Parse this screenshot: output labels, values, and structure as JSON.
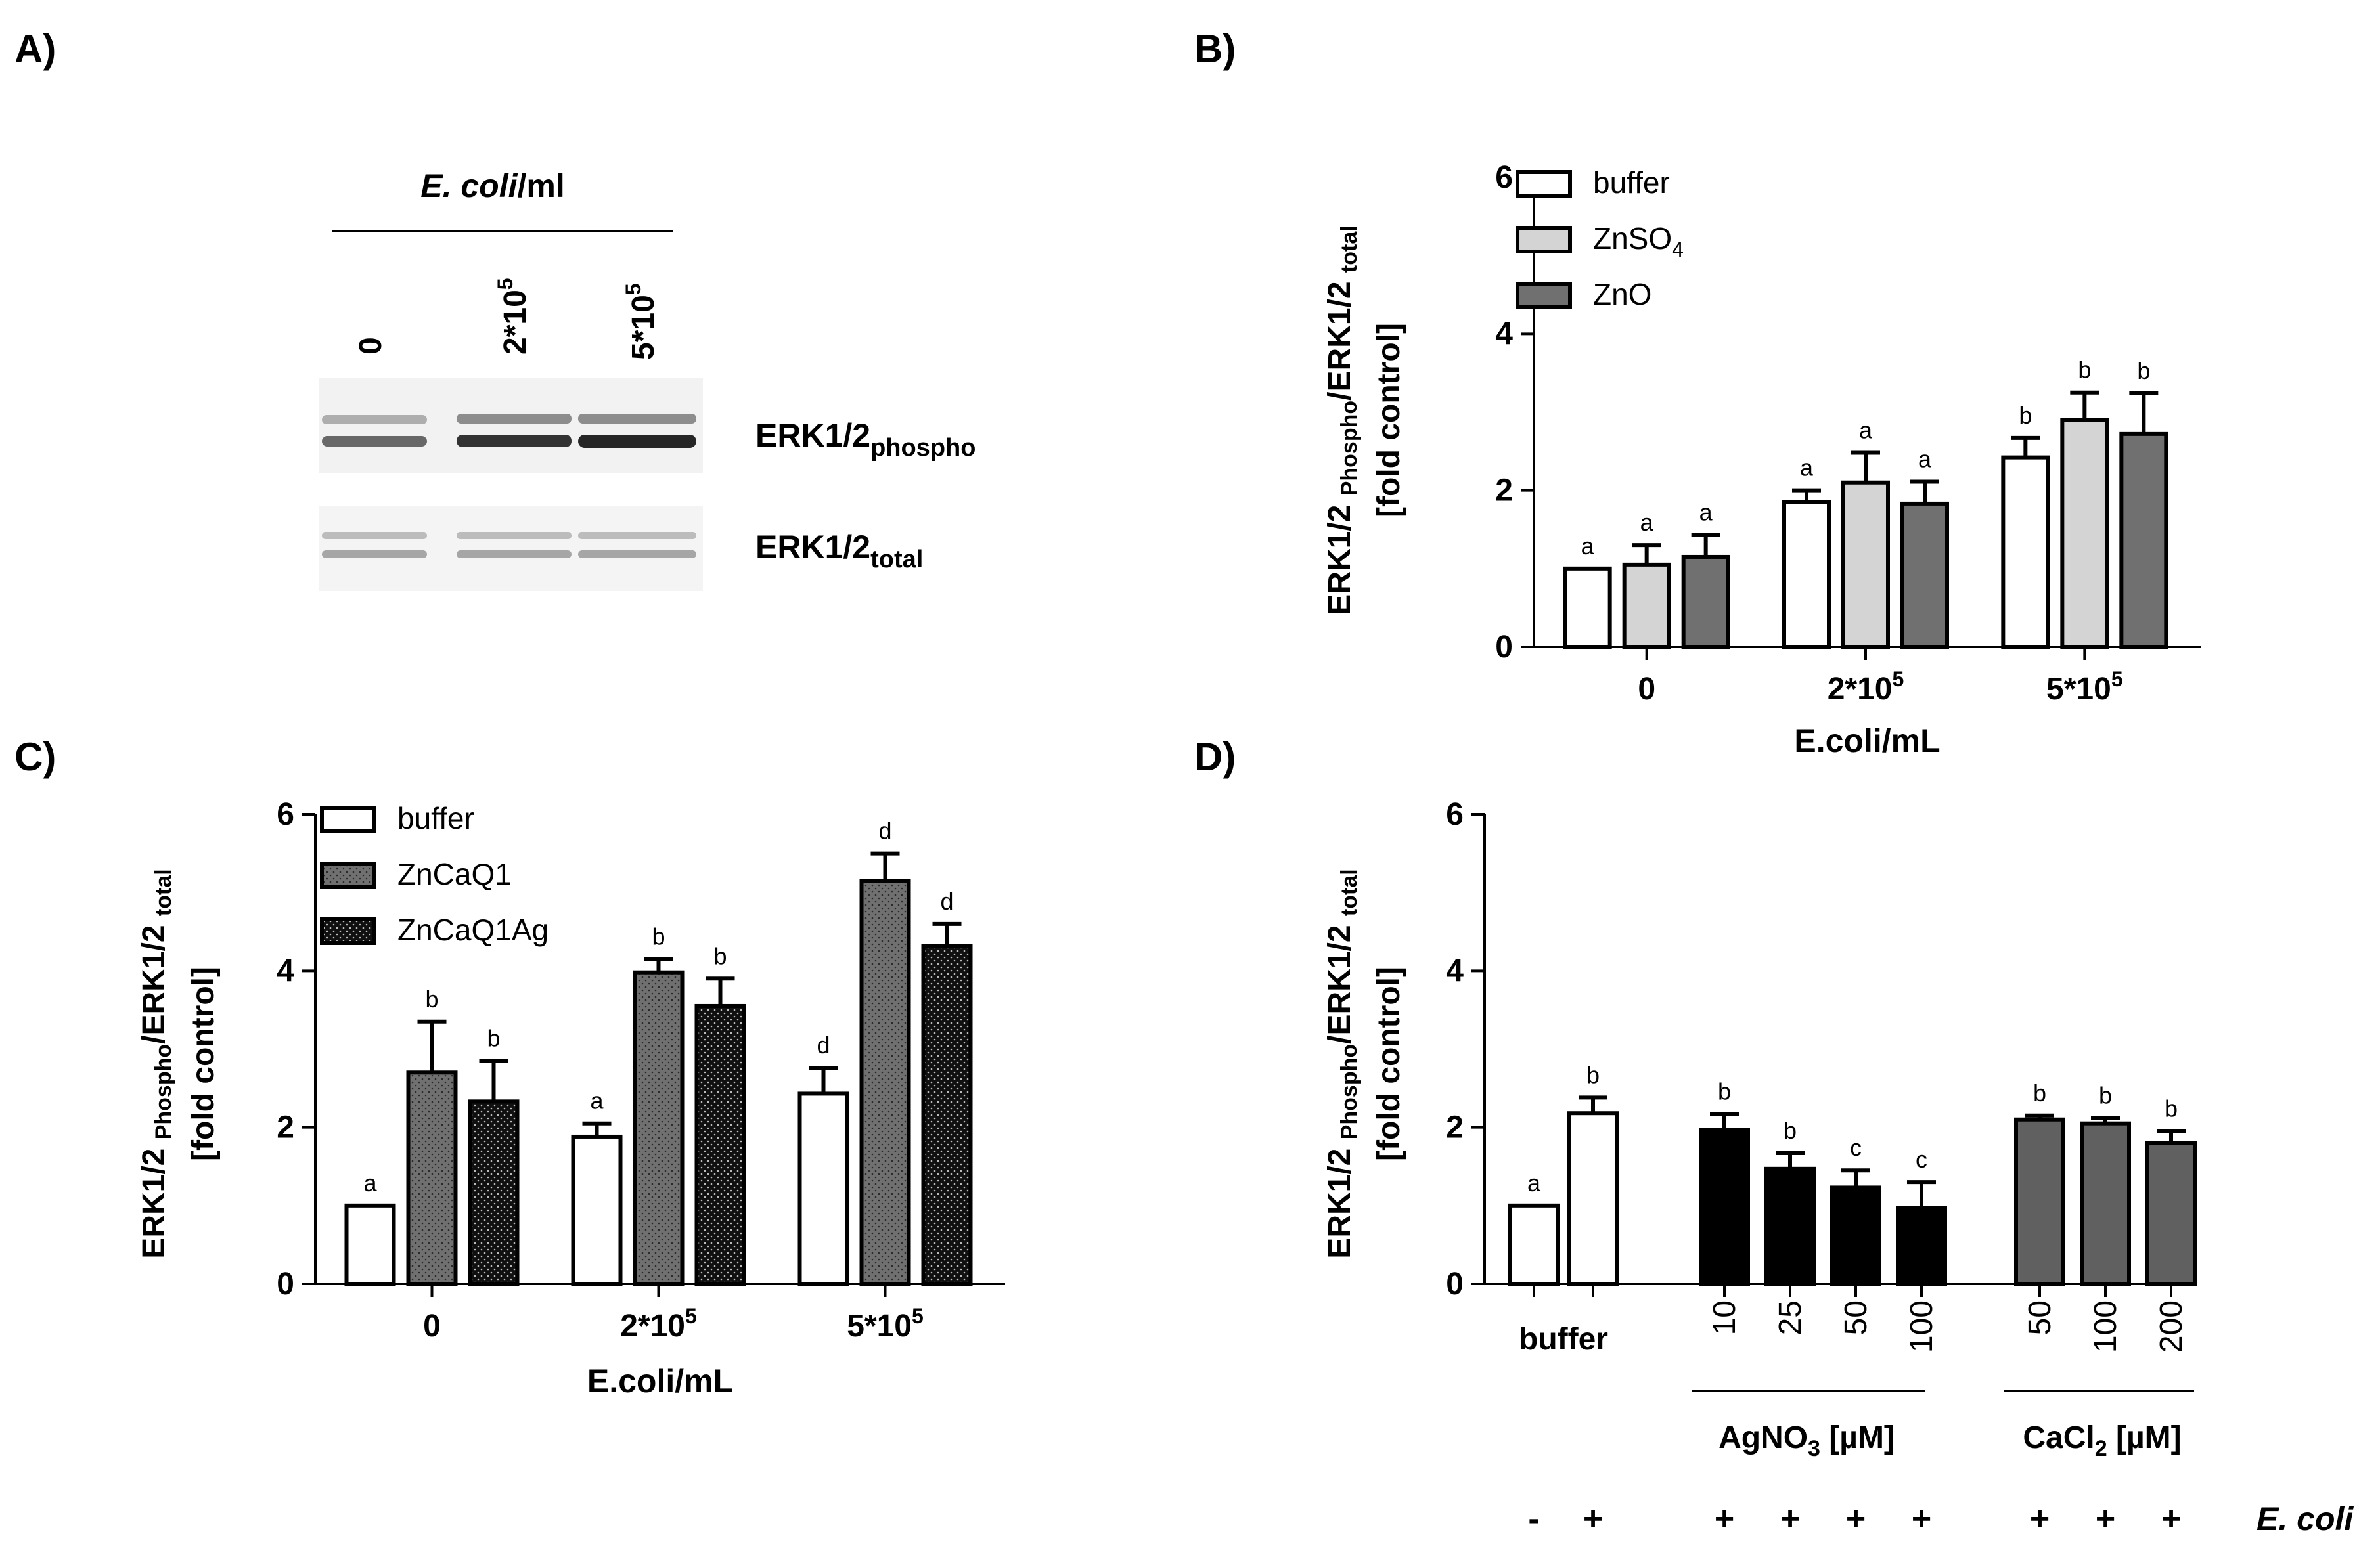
{
  "panels": {
    "A": {
      "panel_label": "A)",
      "header_prefix": "E. coli",
      "header_suffix": "/ml",
      "lane_labels": [
        {
          "base": "0",
          "sup": ""
        },
        {
          "base": "2*10",
          "sup": "5"
        },
        {
          "base": "5*10",
          "sup": "5"
        }
      ],
      "band_labels": [
        {
          "base": "ERK1/2",
          "sub": "phospho"
        },
        {
          "base": "ERK1/2",
          "sub": "total"
        }
      ]
    },
    "B": {
      "panel_label": "B)"
    },
    "C": {
      "panel_label": "C)"
    },
    "D": {
      "panel_label": "D)",
      "buffer_label": "buffer",
      "group_labels": [
        {
          "base": "AgNO",
          "sub": "3",
          "rest": " [µM]"
        },
        {
          "base": "CaCl",
          "sub": "2",
          "rest": " [µM]"
        }
      ],
      "ecoli_row": [
        "-",
        "+",
        "+",
        "+",
        "+",
        "+",
        "+",
        "+",
        "+"
      ],
      "ecoli_label": "E. coli"
    }
  },
  "colors": {
    "buffer": "#ffffff",
    "ZnSO4": "#d4d4d4",
    "ZnO": "#707070",
    "ZnCaQ1": "#707070",
    "ZnCaQ1Ag": "#101010",
    "AgNO3": "#000000",
    "CaCl2": "#606060"
  },
  "chart_data": [
    {
      "id": "B",
      "type": "bar",
      "categories": [
        {
          "base": "0",
          "sup": ""
        },
        {
          "base": "2*10",
          "sup": "5"
        },
        {
          "base": "5*10",
          "sup": "5"
        }
      ],
      "series": [
        {
          "name": {
            "base": "buffer",
            "sub": ""
          },
          "color": "#ffffff",
          "pattern": "none",
          "values": [
            1.0,
            1.85,
            2.42
          ],
          "errors": [
            0.0,
            0.15,
            0.25
          ],
          "letters": [
            "a",
            "a",
            "b"
          ]
        },
        {
          "name": {
            "base": "ZnSO",
            "sub": "4"
          },
          "color": "#d4d4d4",
          "pattern": "none",
          "values": [
            1.05,
            2.1,
            2.9
          ],
          "errors": [
            0.25,
            0.38,
            0.35
          ],
          "letters": [
            "a",
            "a",
            "b"
          ]
        },
        {
          "name": {
            "base": "ZnO",
            "sub": ""
          },
          "color": "#707070",
          "pattern": "none",
          "values": [
            1.15,
            1.83,
            2.72
          ],
          "errors": [
            0.28,
            0.28,
            0.52
          ],
          "letters": [
            "a",
            "a",
            "b"
          ]
        }
      ],
      "xlabel": "E.coli/mL",
      "ylabel": {
        "l1_a": "ERK1/2 ",
        "l1_b": "Phospho",
        "l1_c": "/ERK1/2 ",
        "l1_d": "total",
        "l2": "[fold control]"
      },
      "ylim": [
        0,
        6
      ],
      "yticks": [
        "0",
        "2",
        "4",
        "6"
      ],
      "legend": "top-left"
    },
    {
      "id": "C",
      "type": "bar",
      "categories": [
        {
          "base": "0",
          "sup": ""
        },
        {
          "base": "2*10",
          "sup": "5"
        },
        {
          "base": "5*10",
          "sup": "5"
        }
      ],
      "series": [
        {
          "name": {
            "base": "buffer",
            "sub": ""
          },
          "color": "#ffffff",
          "pattern": "none",
          "values": [
            1.0,
            1.88,
            2.43
          ],
          "errors": [
            0.0,
            0.17,
            0.33
          ],
          "letters": [
            "a",
            "a",
            "d"
          ]
        },
        {
          "name": {
            "base": "ZnCaQ1",
            "sub": ""
          },
          "color": "#707070",
          "pattern": "dots-dark",
          "values": [
            2.7,
            3.98,
            5.15
          ],
          "errors": [
            0.65,
            0.17,
            0.35
          ],
          "letters": [
            "b",
            "b",
            "d"
          ]
        },
        {
          "name": {
            "base": "ZnCaQ1Ag",
            "sub": ""
          },
          "color": "#101010",
          "pattern": "dots-light",
          "values": [
            2.33,
            3.55,
            4.32
          ],
          "errors": [
            0.52,
            0.35,
            0.28
          ],
          "letters": [
            "b",
            "b",
            "d"
          ]
        }
      ],
      "xlabel": "E.coli/mL",
      "ylabel": {
        "l1_a": "ERK1/2 ",
        "l1_b": "Phospho",
        "l1_c": "/ERK1/2 ",
        "l1_d": "total",
        "l2": "[fold control]"
      },
      "ylim": [
        0,
        6
      ],
      "yticks": [
        "0",
        "2",
        "4",
        "6"
      ],
      "legend": "top-left"
    },
    {
      "id": "D",
      "type": "bar",
      "bars": [
        {
          "label": "",
          "color": "#ffffff",
          "value": 1.0,
          "error": 0.0,
          "letter": "a"
        },
        {
          "label": "",
          "color": "#ffffff",
          "value": 2.18,
          "error": 0.2,
          "letter": "b"
        },
        {
          "label": "10",
          "color": "#000000",
          "value": 1.97,
          "error": 0.2,
          "letter": "b"
        },
        {
          "label": "25",
          "color": "#000000",
          "value": 1.47,
          "error": 0.2,
          "letter": "b"
        },
        {
          "label": "50",
          "color": "#000000",
          "value": 1.23,
          "error": 0.22,
          "letter": "c"
        },
        {
          "label": "100",
          "color": "#000000",
          "value": 0.97,
          "error": 0.33,
          "letter": "c"
        },
        {
          "label": "50",
          "color": "#606060",
          "value": 2.1,
          "error": 0.05,
          "letter": "b"
        },
        {
          "label": "100",
          "color": "#606060",
          "value": 2.05,
          "error": 0.07,
          "letter": "b"
        },
        {
          "label": "200",
          "color": "#606060",
          "value": 1.8,
          "error": 0.15,
          "letter": "b"
        }
      ],
      "ylabel": {
        "l1_a": "ERK1/2 ",
        "l1_b": "Phospho",
        "l1_c": "/ERK1/2 ",
        "l1_d": "total",
        "l2": "[fold control]"
      },
      "ylim": [
        0,
        6
      ],
      "yticks": [
        "0",
        "2",
        "4",
        "6"
      ]
    }
  ]
}
